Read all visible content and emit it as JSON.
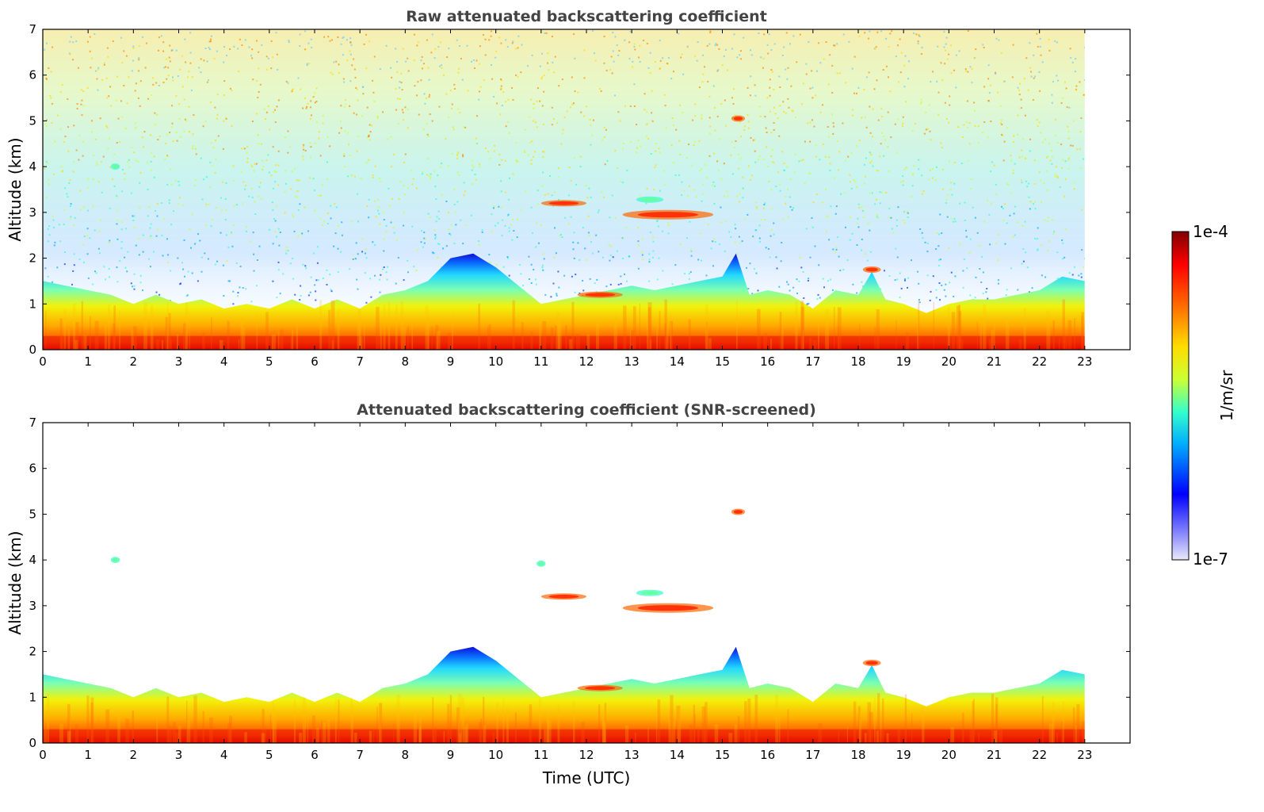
{
  "chart_data": [
    {
      "type": "heatmap",
      "title": "Raw attenuated backscattering coefficient",
      "ylabel": "Altitude (km)",
      "xlabel": "",
      "xlim": [
        0,
        24
      ],
      "ylim": [
        0,
        7
      ],
      "xticks": [
        "0",
        "1",
        "2",
        "3",
        "4",
        "5",
        "6",
        "7",
        "8",
        "9",
        "10",
        "11",
        "12",
        "13",
        "14",
        "15",
        "16",
        "17",
        "18",
        "19",
        "20",
        "21",
        "22",
        "23"
      ],
      "yticks": [
        "0",
        "1",
        "2",
        "3",
        "4",
        "5",
        "6",
        "7"
      ],
      "data_end_time": 23,
      "screened": false,
      "boundary_layer_top_km": [
        [
          0,
          1.5
        ],
        [
          0.5,
          1.4
        ],
        [
          1,
          1.3
        ],
        [
          1.5,
          1.2
        ],
        [
          2,
          1.0
        ],
        [
          2.5,
          1.2
        ],
        [
          3,
          1.0
        ],
        [
          3.5,
          1.1
        ],
        [
          4,
          0.9
        ],
        [
          4.5,
          1.0
        ],
        [
          5,
          0.9
        ],
        [
          5.5,
          1.1
        ],
        [
          6,
          0.9
        ],
        [
          6.5,
          1.1
        ],
        [
          7,
          0.9
        ],
        [
          7.5,
          1.2
        ],
        [
          8,
          1.3
        ],
        [
          8.5,
          1.5
        ],
        [
          9,
          2.0
        ],
        [
          9.5,
          2.1
        ],
        [
          10,
          1.8
        ],
        [
          10.5,
          1.4
        ],
        [
          11,
          1.0
        ],
        [
          11.5,
          1.1
        ],
        [
          12,
          1.2
        ],
        [
          12.5,
          1.3
        ],
        [
          13,
          1.4
        ],
        [
          13.5,
          1.3
        ],
        [
          14,
          1.4
        ],
        [
          14.5,
          1.5
        ],
        [
          15,
          1.6
        ],
        [
          15.3,
          2.1
        ],
        [
          15.6,
          1.2
        ],
        [
          16,
          1.3
        ],
        [
          16.5,
          1.2
        ],
        [
          17,
          0.9
        ],
        [
          17.5,
          1.3
        ],
        [
          18,
          1.2
        ],
        [
          18.3,
          1.7
        ],
        [
          18.6,
          1.1
        ],
        [
          19,
          1.0
        ],
        [
          19.5,
          0.8
        ],
        [
          20,
          1.0
        ],
        [
          20.5,
          1.1
        ],
        [
          21,
          1.1
        ],
        [
          21.5,
          1.2
        ],
        [
          22,
          1.3
        ],
        [
          22.5,
          1.6
        ],
        [
          23,
          1.5
        ]
      ],
      "cloud_layers": [
        {
          "t0": 11.0,
          "t1": 12.0,
          "alt_km": 3.2,
          "level": "high"
        },
        {
          "t0": 12.8,
          "t1": 14.8,
          "alt_km": 2.95,
          "level": "high"
        },
        {
          "t0": 13.1,
          "t1": 13.7,
          "alt_km": 3.28,
          "level": "medium"
        },
        {
          "t0": 15.2,
          "t1": 15.5,
          "alt_km": 5.05,
          "level": "high"
        },
        {
          "t0": 11.8,
          "t1": 12.8,
          "alt_km": 1.2,
          "level": "high"
        },
        {
          "t0": 18.1,
          "t1": 18.5,
          "alt_km": 1.75,
          "level": "high"
        },
        {
          "t0": 1.5,
          "t1": 1.7,
          "alt_km": 4.0,
          "level": "medium"
        }
      ]
    },
    {
      "type": "heatmap",
      "title": "Attenuated backscattering coefficient (SNR-screened)",
      "ylabel": "Altitude (km)",
      "xlabel": "Time (UTC)",
      "xlim": [
        0,
        24
      ],
      "ylim": [
        0,
        7
      ],
      "xticks": [
        "0",
        "1",
        "2",
        "3",
        "4",
        "5",
        "6",
        "7",
        "8",
        "9",
        "10",
        "11",
        "12",
        "13",
        "14",
        "15",
        "16",
        "17",
        "18",
        "19",
        "20",
        "21",
        "22",
        "23"
      ],
      "yticks": [
        "0",
        "1",
        "2",
        "3",
        "4",
        "5",
        "6",
        "7"
      ],
      "data_end_time": 23,
      "screened": true,
      "cloud_layers": [
        {
          "t0": 11.0,
          "t1": 12.0,
          "alt_km": 3.2,
          "level": "high"
        },
        {
          "t0": 12.8,
          "t1": 14.8,
          "alt_km": 2.95,
          "level": "high"
        },
        {
          "t0": 13.1,
          "t1": 13.7,
          "alt_km": 3.28,
          "level": "medium"
        },
        {
          "t0": 15.2,
          "t1": 15.5,
          "alt_km": 5.05,
          "level": "high"
        },
        {
          "t0": 11.8,
          "t1": 12.8,
          "alt_km": 1.2,
          "level": "high"
        },
        {
          "t0": 18.1,
          "t1": 18.5,
          "alt_km": 1.75,
          "level": "high"
        },
        {
          "t0": 1.5,
          "t1": 1.7,
          "alt_km": 4.0,
          "level": "medium"
        },
        {
          "t0": 10.9,
          "t1": 11.1,
          "alt_km": 3.92,
          "level": "medium"
        }
      ]
    }
  ],
  "colorbar": {
    "label": "1/m/sr",
    "max_label": "1e-4",
    "min_label": "1e-7",
    "colormap": "jet",
    "scale": "log",
    "range": [
      1e-07,
      0.0001
    ]
  },
  "colors": {
    "jet_stops": [
      "#eaeaf8",
      "#0000ff",
      "#00aaff",
      "#33ffcc",
      "#ccff33",
      "#ffdd00",
      "#ff6600",
      "#ff0000",
      "#800000"
    ]
  }
}
